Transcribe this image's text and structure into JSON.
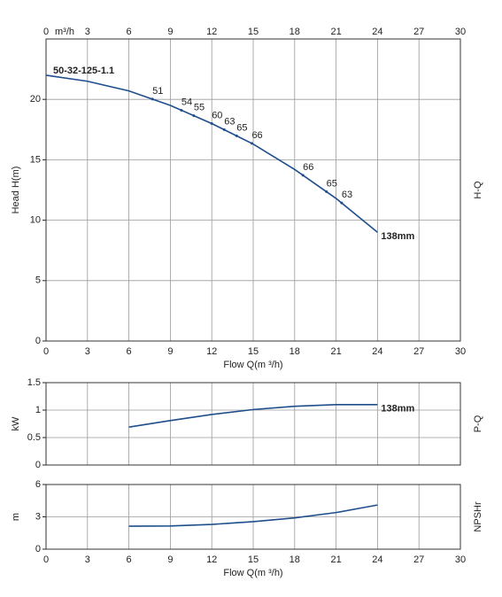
{
  "chart_data": [
    {
      "type": "line",
      "title": "50-32-125-1.1",
      "ylabel": "Head H(m)",
      "side_label": "H-Q",
      "xlabel": "Flow Q(m ³/h)",
      "top_axis_unit": "m³/h",
      "top_axis": true,
      "bottom_axis": true,
      "grid": true,
      "xlim": [
        0,
        30
      ],
      "xticks": [
        0,
        3,
        6,
        9,
        12,
        15,
        18,
        21,
        24,
        27,
        30
      ],
      "ylim": [
        0,
        25
      ],
      "yticks": [
        0,
        5,
        10,
        15,
        20
      ],
      "series": [
        {
          "name": "138mm",
          "color": "#1f4e8c",
          "x": [
            0,
            3,
            6,
            9,
            12,
            15,
            18,
            21,
            24
          ],
          "values": [
            22.0,
            21.5,
            20.7,
            19.5,
            18.0,
            16.3,
            14.2,
            11.8,
            9.0
          ]
        }
      ],
      "efficiency": {
        "x": [
          7.7,
          9.8,
          10.7,
          12.0,
          12.9,
          13.8,
          14.9,
          18.6,
          20.3,
          21.4
        ],
        "values": [
          51,
          54,
          55,
          60,
          63,
          65,
          66,
          66,
          65,
          63
        ]
      }
    },
    {
      "type": "line",
      "ylabel": "kW",
      "side_label": "P-Q",
      "top_axis": false,
      "bottom_axis": false,
      "grid": true,
      "xlim": [
        0,
        30
      ],
      "xticks": [
        0,
        3,
        6,
        9,
        12,
        15,
        18,
        21,
        24,
        27,
        30
      ],
      "ylim": [
        0,
        1.5
      ],
      "yticks": [
        0,
        0.5,
        1,
        1.5
      ],
      "series": [
        {
          "name": "138mm",
          "color": "#1f4e8c",
          "x": [
            6,
            9,
            12,
            15,
            18,
            21,
            24
          ],
          "values": [
            0.69,
            0.81,
            0.92,
            1.01,
            1.07,
            1.1,
            1.1
          ]
        }
      ]
    },
    {
      "type": "line",
      "ylabel": "m",
      "side_label": "NPSHr",
      "xlabel": "Flow Q(m ³/h)",
      "top_axis": false,
      "bottom_axis": true,
      "grid": true,
      "xlim": [
        0,
        30
      ],
      "xticks": [
        0,
        3,
        6,
        9,
        12,
        15,
        18,
        21,
        24,
        27,
        30
      ],
      "ylim": [
        0,
        6
      ],
      "yticks": [
        0,
        3,
        6
      ],
      "series": [
        {
          "color": "#1f4e8c",
          "x": [
            6,
            9,
            12,
            15,
            18,
            21,
            24
          ],
          "values": [
            2.13,
            2.15,
            2.3,
            2.55,
            2.9,
            3.4,
            4.1
          ]
        }
      ]
    }
  ]
}
